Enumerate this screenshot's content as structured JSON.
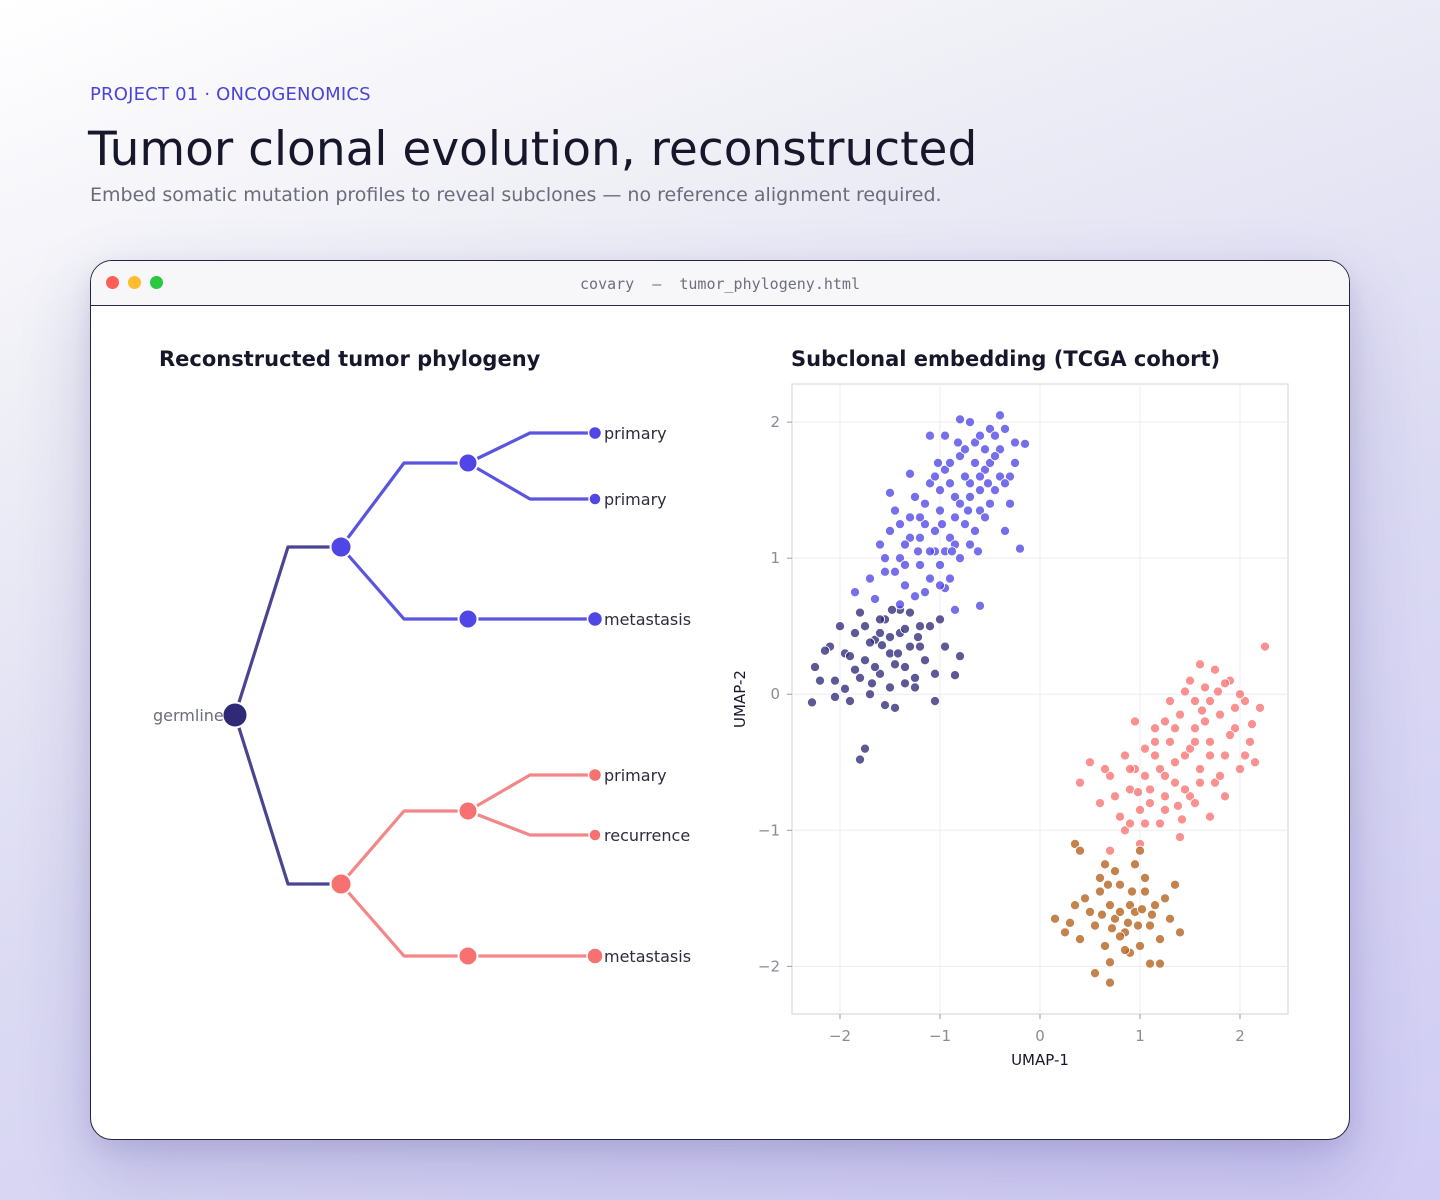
{
  "header": {
    "eyebrow": "PROJECT 01 · ONCOGENOMICS",
    "title": "Tumor clonal evolution, reconstructed",
    "subtitle": "Embed somatic mutation profiles to reveal subclones — no reference alignment required."
  },
  "window": {
    "title": "covary  —  tumor_phylogeny.html"
  },
  "colors": {
    "root": "#2e2a78",
    "trunk": "#4b4490",
    "clade_a": "#5b54df",
    "clade_a_node": "#4f46e5",
    "clade_b": "#f38787",
    "clade_b_node": "#f87171",
    "cluster_dark": "#2e2a78",
    "cluster_blue": "#4f46e5",
    "cluster_pink": "#f87171",
    "cluster_brown": "#b45f1a"
  },
  "tree": {
    "title": "Reconstructed tumor phylogeny",
    "root_label": "germline",
    "leaves": [
      {
        "label": "primary",
        "clade": "a"
      },
      {
        "label": "primary",
        "clade": "a"
      },
      {
        "label": "metastasis",
        "clade": "a"
      },
      {
        "label": "primary",
        "clade": "b"
      },
      {
        "label": "recurrence",
        "clade": "b"
      },
      {
        "label": "metastasis",
        "clade": "b"
      }
    ]
  },
  "chart_data": {
    "type": "scatter",
    "title": "Subclonal embedding (TCGA cohort)",
    "xlabel": "UMAP-1",
    "ylabel": "UMAP-2",
    "xlim": [
      -2.48,
      2.48
    ],
    "ylim": [
      -2.35,
      2.28
    ],
    "xticks": [
      -2,
      -1,
      0,
      1,
      2
    ],
    "yticks": [
      -2,
      -1,
      0,
      1,
      2
    ],
    "grid": true,
    "legend": "none",
    "series": [
      {
        "color": "#2e2a78",
        "points": [
          [
            -2.25,
            0.2
          ],
          [
            -2.1,
            0.35
          ],
          [
            -2.05,
            0.1
          ],
          [
            -1.95,
            0.3
          ],
          [
            -1.9,
            -0.05
          ],
          [
            -1.85,
            0.45
          ],
          [
            -1.8,
            0.6
          ],
          [
            -1.75,
            0.25
          ],
          [
            -1.7,
            0.0
          ],
          [
            -1.65,
            0.4
          ],
          [
            -1.6,
            0.15
          ],
          [
            -1.55,
            0.55
          ],
          [
            -1.5,
            0.3
          ],
          [
            -1.45,
            -0.1
          ],
          [
            -1.4,
            0.45
          ],
          [
            -1.35,
            0.2
          ],
          [
            -1.3,
            0.6
          ],
          [
            -1.25,
            0.05
          ],
          [
            -1.2,
            0.35
          ],
          [
            -1.15,
            0.25
          ],
          [
            -1.1,
            0.5
          ],
          [
            -1.05,
            0.15
          ],
          [
            -1.0,
            0.55
          ],
          [
            -0.95,
            0.35
          ],
          [
            -1.8,
            -0.48
          ],
          [
            -1.75,
            -0.4
          ],
          [
            -0.8,
            0.28
          ],
          [
            -0.85,
            0.14
          ],
          [
            -1.05,
            -0.05
          ],
          [
            -2.2,
            0.1
          ],
          [
            -2.0,
            0.5
          ],
          [
            -1.6,
            0.45
          ],
          [
            -1.4,
            0.62
          ],
          [
            -1.55,
            -0.08
          ],
          [
            -1.3,
            0.35
          ],
          [
            -1.65,
            0.2
          ],
          [
            -1.5,
            0.05
          ],
          [
            -1.35,
            0.48
          ],
          [
            -2.15,
            0.32
          ],
          [
            -1.85,
            0.18
          ],
          [
            -1.7,
            0.38
          ],
          [
            -1.45,
            0.22
          ],
          [
            -1.25,
            0.12
          ],
          [
            -1.95,
            0.04
          ],
          [
            -1.6,
            0.55
          ],
          [
            -2.05,
            -0.02
          ],
          [
            -1.75,
            0.5
          ],
          [
            -1.2,
            0.5
          ],
          [
            -1.9,
            0.28
          ],
          [
            -1.5,
            0.42
          ],
          [
            -1.35,
            0.08
          ],
          [
            -1.8,
            0.12
          ],
          [
            -1.42,
            0.3
          ],
          [
            -1.68,
            0.08
          ],
          [
            -1.58,
            0.36
          ],
          [
            -1.22,
            0.42
          ],
          [
            -2.28,
            -0.06
          ],
          [
            -1.48,
            0.62
          ]
        ]
      },
      {
        "color": "#4f46e5",
        "points": [
          [
            -1.6,
            1.1
          ],
          [
            -1.55,
            0.9
          ],
          [
            -1.5,
            1.2
          ],
          [
            -1.45,
            1.35
          ],
          [
            -1.4,
            1.0
          ],
          [
            -1.35,
            0.8
          ],
          [
            -1.3,
            1.15
          ],
          [
            -1.25,
            1.45
          ],
          [
            -1.2,
            0.95
          ],
          [
            -1.15,
            1.25
          ],
          [
            -1.1,
            1.55
          ],
          [
            -1.05,
            1.05
          ],
          [
            -1.0,
            1.35
          ],
          [
            -0.95,
            1.65
          ],
          [
            -0.9,
            1.15
          ],
          [
            -0.85,
            1.45
          ],
          [
            -0.8,
            1.75
          ],
          [
            -0.75,
            1.25
          ],
          [
            -0.7,
            1.55
          ],
          [
            -0.65,
            1.85
          ],
          [
            -0.6,
            1.35
          ],
          [
            -0.55,
            1.65
          ],
          [
            -0.5,
            1.95
          ],
          [
            -0.45,
            1.5
          ],
          [
            -0.4,
            1.8
          ],
          [
            -0.35,
            1.2
          ],
          [
            -0.3,
            1.6
          ],
          [
            -0.25,
            1.85
          ],
          [
            -1.0,
            0.95
          ],
          [
            -0.9,
            0.85
          ],
          [
            -0.8,
            1.0
          ],
          [
            -1.1,
            0.85
          ],
          [
            -1.2,
            1.3
          ],
          [
            -0.95,
            1.05
          ],
          [
            -0.7,
            1.1
          ],
          [
            -0.6,
            1.6
          ],
          [
            -0.55,
            1.3
          ],
          [
            -0.5,
            1.7
          ],
          [
            -0.4,
            1.6
          ],
          [
            -0.35,
            1.95
          ],
          [
            -0.2,
            1.07
          ],
          [
            -0.15,
            1.84
          ],
          [
            -0.4,
            2.05
          ],
          [
            -0.8,
            2.02
          ],
          [
            -1.1,
            1.9
          ],
          [
            -1.3,
            1.62
          ],
          [
            -1.5,
            1.48
          ],
          [
            -1.7,
            0.85
          ],
          [
            -1.85,
            0.75
          ],
          [
            -1.65,
            0.7
          ],
          [
            -1.4,
            0.66
          ],
          [
            -0.85,
            0.62
          ],
          [
            -0.95,
            0.78
          ],
          [
            -0.6,
            0.65
          ],
          [
            -1.25,
            0.72
          ],
          [
            -1.0,
            1.5
          ],
          [
            -0.7,
            1.45
          ],
          [
            -1.35,
            1.1
          ],
          [
            -1.05,
            1.2
          ],
          [
            -0.85,
            1.3
          ],
          [
            -0.65,
            1.7
          ],
          [
            -0.75,
            1.6
          ],
          [
            -1.15,
            1.4
          ],
          [
            -0.5,
            1.4
          ],
          [
            -0.45,
            1.75
          ],
          [
            -0.3,
            1.4
          ],
          [
            -0.9,
            1.55
          ],
          [
            -1.45,
            0.9
          ],
          [
            -1.55,
            1.0
          ],
          [
            -1.0,
            0.8
          ],
          [
            -0.85,
            1.1
          ],
          [
            -0.6,
            1.5
          ],
          [
            -0.75,
            1.8
          ],
          [
            -0.55,
            1.8
          ],
          [
            -0.7,
            2.0
          ],
          [
            -0.95,
            1.9
          ],
          [
            -1.3,
            1.3
          ],
          [
            -1.1,
            1.05
          ],
          [
            -0.65,
            1.2
          ],
          [
            -0.8,
            1.4
          ],
          [
            -1.2,
            1.15
          ],
          [
            -1.4,
            1.25
          ],
          [
            -0.35,
            1.55
          ],
          [
            -0.45,
            1.9
          ],
          [
            -0.25,
            1.7
          ],
          [
            -1.05,
            1.6
          ],
          [
            -0.9,
            1.7
          ],
          [
            -0.6,
            1.9
          ],
          [
            -1.35,
            0.95
          ],
          [
            -1.15,
            0.75
          ],
          [
            -0.98,
            1.25
          ],
          [
            -0.72,
            1.35
          ],
          [
            -0.52,
            1.55
          ],
          [
            -0.88,
            1.05
          ],
          [
            -1.22,
            1.05
          ],
          [
            -0.62,
            1.05
          ],
          [
            -1.02,
            1.7
          ],
          [
            -0.82,
            1.85
          ]
        ]
      },
      {
        "color": "#f87171",
        "points": [
          [
            0.4,
            -0.65
          ],
          [
            0.5,
            -0.5
          ],
          [
            0.6,
            -0.8
          ],
          [
            0.7,
            -0.6
          ],
          [
            0.8,
            -0.9
          ],
          [
            0.85,
            -0.45
          ],
          [
            0.9,
            -0.7
          ],
          [
            0.95,
            -0.55
          ],
          [
            1.0,
            -0.85
          ],
          [
            1.05,
            -0.4
          ],
          [
            1.1,
            -0.7
          ],
          [
            1.15,
            -0.25
          ],
          [
            1.2,
            -0.55
          ],
          [
            1.25,
            -0.85
          ],
          [
            1.3,
            -0.35
          ],
          [
            1.35,
            -0.65
          ],
          [
            1.4,
            -0.15
          ],
          [
            1.45,
            -0.45
          ],
          [
            1.5,
            -0.75
          ],
          [
            1.55,
            -0.25
          ],
          [
            1.6,
            -0.55
          ],
          [
            1.65,
            0.05
          ],
          [
            1.7,
            -0.35
          ],
          [
            1.75,
            -0.65
          ],
          [
            1.8,
            -0.15
          ],
          [
            1.85,
            -0.45
          ],
          [
            1.9,
            0.1
          ],
          [
            1.95,
            -0.25
          ],
          [
            2.0,
            -0.55
          ],
          [
            2.05,
            -0.05
          ],
          [
            2.1,
            -0.35
          ],
          [
            2.15,
            -0.5
          ],
          [
            2.2,
            -0.1
          ],
          [
            2.25,
            0.35
          ],
          [
            0.7,
            -1.15
          ],
          [
            0.85,
            -1.0
          ],
          [
            1.0,
            -1.1
          ],
          [
            1.2,
            -0.95
          ],
          [
            1.4,
            -1.05
          ],
          [
            1.55,
            -0.8
          ],
          [
            1.7,
            -0.9
          ],
          [
            0.95,
            -0.2
          ],
          [
            1.25,
            -0.2
          ],
          [
            1.5,
            0.1
          ],
          [
            1.6,
            0.22
          ],
          [
            1.75,
            0.18
          ],
          [
            1.85,
            0.08
          ],
          [
            1.45,
            0.02
          ],
          [
            1.55,
            -0.05
          ],
          [
            1.3,
            -0.05
          ],
          [
            1.15,
            -0.45
          ],
          [
            1.05,
            -0.6
          ],
          [
            1.35,
            -0.5
          ],
          [
            1.65,
            -0.2
          ],
          [
            1.95,
            -0.1
          ],
          [
            2.05,
            -0.45
          ],
          [
            1.8,
            -0.6
          ],
          [
            1.45,
            -0.7
          ],
          [
            1.25,
            -0.6
          ],
          [
            1.1,
            -0.8
          ],
          [
            0.9,
            -0.95
          ],
          [
            0.75,
            -0.75
          ],
          [
            0.65,
            -0.55
          ],
          [
            1.6,
            -0.65
          ],
          [
            1.7,
            -0.05
          ],
          [
            1.9,
            -0.3
          ],
          [
            2.0,
            0.0
          ],
          [
            1.35,
            -0.25
          ],
          [
            1.5,
            -0.4
          ],
          [
            1.15,
            -0.35
          ],
          [
            1.85,
            -0.75
          ],
          [
            1.25,
            -0.75
          ],
          [
            1.05,
            -0.95
          ],
          [
            0.9,
            -0.55
          ],
          [
            1.7,
            -0.45
          ],
          [
            1.55,
            -0.35
          ],
          [
            2.12,
            -0.22
          ],
          [
            1.42,
            -0.92
          ],
          [
            0.98,
            -0.72
          ],
          [
            1.78,
            0.02
          ],
          [
            1.62,
            -0.12
          ],
          [
            1.38,
            -0.82
          ]
        ]
      },
      {
        "color": "#b45f1a",
        "points": [
          [
            0.15,
            -1.65
          ],
          [
            0.25,
            -1.75
          ],
          [
            0.35,
            -1.55
          ],
          [
            0.4,
            -1.8
          ],
          [
            0.5,
            -1.6
          ],
          [
            0.55,
            -1.7
          ],
          [
            0.6,
            -1.45
          ],
          [
            0.65,
            -1.85
          ],
          [
            0.7,
            -1.55
          ],
          [
            0.75,
            -1.65
          ],
          [
            0.8,
            -1.4
          ],
          [
            0.85,
            -1.75
          ],
          [
            0.9,
            -1.55
          ],
          [
            0.95,
            -1.6
          ],
          [
            1.0,
            -1.85
          ],
          [
            1.05,
            -1.45
          ],
          [
            1.1,
            -1.7
          ],
          [
            1.15,
            -1.55
          ],
          [
            1.2,
            -1.8
          ],
          [
            1.25,
            -1.5
          ],
          [
            1.3,
            -1.65
          ],
          [
            1.4,
            -1.75
          ],
          [
            0.55,
            -2.05
          ],
          [
            0.7,
            -2.12
          ],
          [
            0.9,
            -1.9
          ],
          [
            1.1,
            -1.98
          ],
          [
            1.2,
            -1.98
          ],
          [
            0.35,
            -1.1
          ],
          [
            0.4,
            -1.15
          ],
          [
            0.65,
            -1.25
          ],
          [
            0.75,
            -1.3
          ],
          [
            0.95,
            -1.25
          ],
          [
            1.05,
            -1.35
          ],
          [
            1.0,
            -1.15
          ],
          [
            1.35,
            -1.4
          ],
          [
            0.6,
            -1.35
          ],
          [
            0.8,
            -1.6
          ],
          [
            0.88,
            -1.68
          ],
          [
            0.72,
            -1.72
          ],
          [
            0.98,
            -1.7
          ],
          [
            0.68,
            -1.4
          ],
          [
            0.8,
            -1.78
          ],
          [
            0.62,
            -1.62
          ],
          [
            1.02,
            -1.58
          ],
          [
            0.92,
            -1.45
          ],
          [
            1.12,
            -1.62
          ],
          [
            0.45,
            -1.5
          ],
          [
            0.3,
            -1.68
          ],
          [
            0.85,
            -1.88
          ],
          [
            0.7,
            -1.97
          ]
        ]
      }
    ]
  }
}
